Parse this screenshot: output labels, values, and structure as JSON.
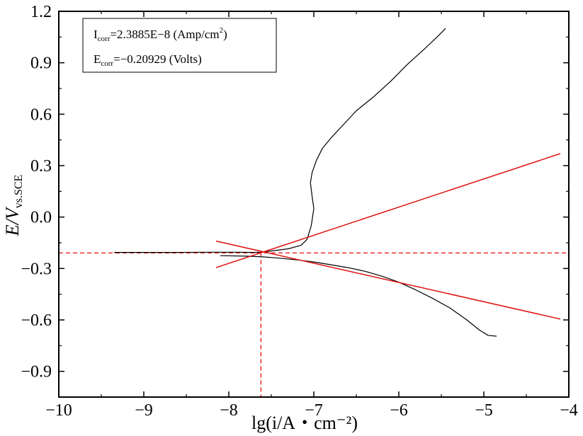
{
  "chart_data": {
    "type": "line",
    "xlabel": "lg(i/A・cm⁻²)",
    "ylabel_main": "E/V",
    "ylabel_sub": "vs.SCE",
    "xlim": [
      -10,
      -4
    ],
    "ylim": [
      -1.05,
      1.2
    ],
    "x_ticks": [
      -10,
      -9,
      -8,
      -7,
      -6,
      -5,
      -4
    ],
    "x_tick_labels": [
      "−10",
      "−9",
      "−8",
      "−7",
      "−6",
      "−5",
      "−4"
    ],
    "y_ticks": [
      1.2,
      0.9,
      0.6,
      0.3,
      0.0,
      -0.3,
      -0.6,
      -0.9
    ],
    "y_tick_labels": [
      "1.2",
      "0.9",
      "0.6",
      "0.3",
      "0.0",
      "−0.3",
      "−0.6",
      "−0.9"
    ],
    "grid": false,
    "legend": {
      "placement": "top-left",
      "line1_main": "I",
      "line1_sub": "corr",
      "line1_rest": "=2.3885E−8 (Amp/cm",
      "line1_sup": "2",
      "line1_end": ")",
      "line2_main": "E",
      "line2_sub": "corr",
      "line2_rest": "=−0.20929 (Volts)"
    },
    "series": [
      {
        "color": "#000000",
        "values": [
          [
            -9.35,
            -0.206
          ],
          [
            -9.0,
            -0.206
          ],
          [
            -8.6,
            -0.206
          ],
          [
            -8.2,
            -0.205
          ],
          [
            -7.9,
            -0.205
          ],
          [
            -7.7,
            -0.206
          ],
          [
            -7.62,
            -0.205
          ],
          [
            -7.5,
            -0.198
          ],
          [
            -7.3,
            -0.185
          ],
          [
            -7.15,
            -0.165
          ],
          [
            -7.08,
            -0.13
          ],
          [
            -7.03,
            -0.05
          ],
          [
            -7.0,
            0.05
          ],
          [
            -7.02,
            0.12
          ],
          [
            -7.04,
            0.2
          ],
          [
            -7.02,
            0.26
          ],
          [
            -6.97,
            0.33
          ],
          [
            -6.9,
            0.4
          ],
          [
            -6.8,
            0.46
          ],
          [
            -6.65,
            0.54
          ],
          [
            -6.5,
            0.62
          ],
          [
            -6.3,
            0.7
          ],
          [
            -6.1,
            0.79
          ],
          [
            -5.9,
            0.89
          ],
          [
            -5.7,
            0.98
          ],
          [
            -5.55,
            1.05
          ],
          [
            -5.45,
            1.1
          ]
        ]
      },
      {
        "color": "#000000",
        "values": [
          [
            -8.1,
            -0.225
          ],
          [
            -7.8,
            -0.228
          ],
          [
            -7.6,
            -0.232
          ],
          [
            -7.4,
            -0.24
          ],
          [
            -7.2,
            -0.25
          ],
          [
            -7.0,
            -0.262
          ],
          [
            -6.8,
            -0.278
          ],
          [
            -6.6,
            -0.295
          ],
          [
            -6.4,
            -0.316
          ],
          [
            -6.2,
            -0.345
          ],
          [
            -6.0,
            -0.38
          ],
          [
            -5.8,
            -0.425
          ],
          [
            -5.6,
            -0.475
          ],
          [
            -5.4,
            -0.53
          ],
          [
            -5.2,
            -0.6
          ],
          [
            -5.05,
            -0.66
          ],
          [
            -4.95,
            -0.69
          ],
          [
            -4.85,
            -0.695
          ]
        ]
      },
      {
        "color": "#e01010",
        "values": [
          [
            -8.15,
            -0.295
          ],
          [
            -4.1,
            0.37
          ]
        ]
      },
      {
        "color": "#e01010",
        "values": [
          [
            -8.15,
            -0.14
          ],
          [
            -4.1,
            -0.595
          ]
        ]
      }
    ],
    "reference_lines": {
      "color": "#e01010",
      "style": "dashed",
      "horizontal_y": -0.20929,
      "vertical_x": -7.622
    }
  }
}
